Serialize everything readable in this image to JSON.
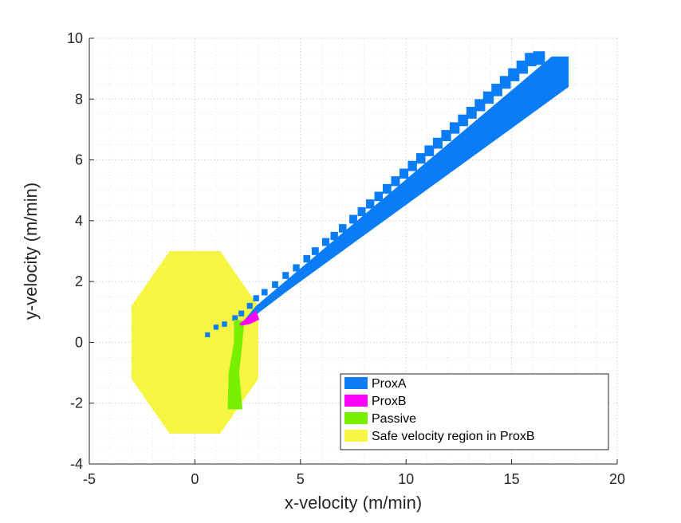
{
  "chart_data": {
    "type": "area",
    "xlabel": "x-velocity (m/min)",
    "ylabel": "y-velocity (m/min)",
    "xlim": [
      -5,
      20
    ],
    "ylim": [
      -4,
      10
    ],
    "x_ticks": [
      "-5",
      "0",
      "5",
      "10",
      "15",
      "20"
    ],
    "y_ticks": [
      "-4",
      "-2",
      "0",
      "2",
      "4",
      "6",
      "8",
      "10"
    ],
    "grid": "major and minor, dotted",
    "legend_position": "bottom-right",
    "series": [
      {
        "name": "ProxA",
        "color": "#0a7cf5",
        "region": [
          [
            2.3,
            0.7
          ],
          [
            2.9,
            1.2
          ],
          [
            16.9,
            9.4
          ],
          [
            17.7,
            9.4
          ],
          [
            17.7,
            8.4
          ],
          [
            4.4,
            1.7
          ],
          [
            2.6,
            0.75
          ]
        ],
        "trail_points": [
          [
            0.6,
            0.25
          ],
          [
            1.0,
            0.5
          ],
          [
            1.4,
            0.6
          ],
          [
            1.9,
            0.8
          ],
          [
            2.2,
            0.95
          ],
          [
            2.6,
            1.2
          ],
          [
            2.9,
            1.45
          ],
          [
            3.3,
            1.65
          ],
          [
            3.8,
            1.9
          ],
          [
            4.3,
            2.2
          ],
          [
            4.8,
            2.45
          ],
          [
            5.3,
            2.75
          ],
          [
            5.7,
            3.0
          ],
          [
            6.2,
            3.3
          ],
          [
            6.6,
            3.5
          ],
          [
            7.0,
            3.75
          ],
          [
            7.5,
            4.05
          ],
          [
            7.9,
            4.3
          ],
          [
            8.3,
            4.55
          ],
          [
            8.7,
            4.8
          ],
          [
            9.1,
            5.05
          ],
          [
            9.5,
            5.3
          ],
          [
            9.9,
            5.55
          ],
          [
            10.3,
            5.8
          ],
          [
            10.7,
            6.05
          ],
          [
            11.1,
            6.3
          ],
          [
            11.5,
            6.55
          ],
          [
            11.9,
            6.8
          ],
          [
            12.3,
            7.05
          ],
          [
            12.7,
            7.3
          ],
          [
            13.1,
            7.55
          ],
          [
            13.5,
            7.8
          ],
          [
            13.9,
            8.05
          ],
          [
            14.3,
            8.3
          ],
          [
            14.7,
            8.55
          ],
          [
            15.1,
            8.8
          ],
          [
            15.5,
            9.05
          ],
          [
            15.9,
            9.3
          ],
          [
            16.3,
            9.35
          ]
        ]
      },
      {
        "name": "ProxB",
        "color": "#ff00ff",
        "region": [
          [
            2.1,
            0.6
          ],
          [
            2.9,
            1.05
          ],
          [
            3.05,
            0.75
          ],
          [
            2.6,
            0.6
          ],
          [
            2.2,
            0.55
          ]
        ]
      },
      {
        "name": "Passive",
        "color": "#77f000",
        "region": [
          [
            1.85,
            0.75
          ],
          [
            2.35,
            0.7
          ],
          [
            2.1,
            -1.0
          ],
          [
            2.25,
            -2.2
          ],
          [
            1.55,
            -2.2
          ],
          [
            1.6,
            -1.0
          ],
          [
            1.85,
            0.0
          ]
        ]
      },
      {
        "name": "Safe velocity region in ProxB",
        "color": "#f5f542",
        "region": [
          [
            -1.2,
            3.0
          ],
          [
            1.2,
            3.0
          ],
          [
            3.0,
            1.2
          ],
          [
            3.0,
            -1.2
          ],
          [
            1.2,
            -3.0
          ],
          [
            -1.2,
            -3.0
          ],
          [
            -3.0,
            -1.2
          ],
          [
            -3.0,
            1.2
          ]
        ]
      }
    ]
  }
}
